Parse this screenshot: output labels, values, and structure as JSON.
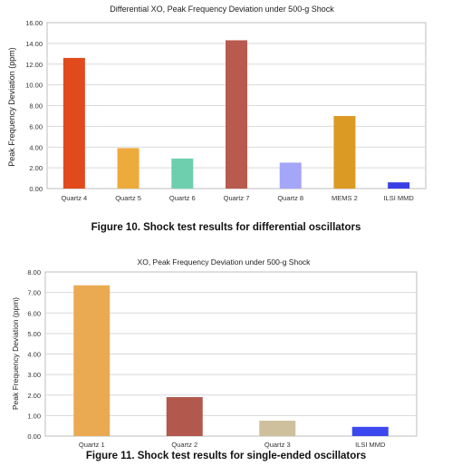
{
  "chart_data": [
    {
      "type": "bar",
      "title": "Differential XO, Peak Frequency Deviation under 500-g Shock",
      "xlabel": "",
      "ylabel": "Peak Frequency Deviation (ppm)",
      "ylim": [
        0,
        16
      ],
      "yticks": [
        "0.00",
        "2.00",
        "4.00",
        "6.00",
        "8.00",
        "10.00",
        "12.00",
        "14.00",
        "16.00"
      ],
      "categories": [
        "Quartz 4",
        "Quartz 5",
        "Quartz 6",
        "Quartz 7",
        "Quartz 8",
        "MEMS 2",
        "ILSI MMD"
      ],
      "values": [
        12.6,
        3.9,
        2.9,
        14.3,
        2.5,
        7.0,
        0.6
      ],
      "colors": [
        "#e04a1c",
        "#edab3c",
        "#6ecfae",
        "#b85a4e",
        "#a4a6f8",
        "#db9a24",
        "#3a3fe4"
      ],
      "grid": true
    },
    {
      "type": "bar",
      "title": "XO, Peak Frequency Deviation under 500-g Shock",
      "xlabel": "",
      "ylabel": "Peak Frequency Deviation (ppm)",
      "ylim": [
        0,
        8
      ],
      "yticks": [
        "0.00",
        "1.00",
        "2.00",
        "3.00",
        "4.00",
        "5.00",
        "6.00",
        "7.00",
        "8.00"
      ],
      "categories": [
        "Quartz 1",
        "Quartz 2",
        "Quartz 3",
        "ILSI MMD"
      ],
      "values": [
        7.35,
        1.9,
        0.75,
        0.45
      ],
      "colors": [
        "#eaaa52",
        "#b2584c",
        "#cec09c",
        "#3c48ee"
      ],
      "grid": true
    }
  ],
  "captions": {
    "figure10": "Figure 10. Shock test results for differential oscillators",
    "figure11": "Figure 11. Shock test results for single-ended oscillators"
  }
}
